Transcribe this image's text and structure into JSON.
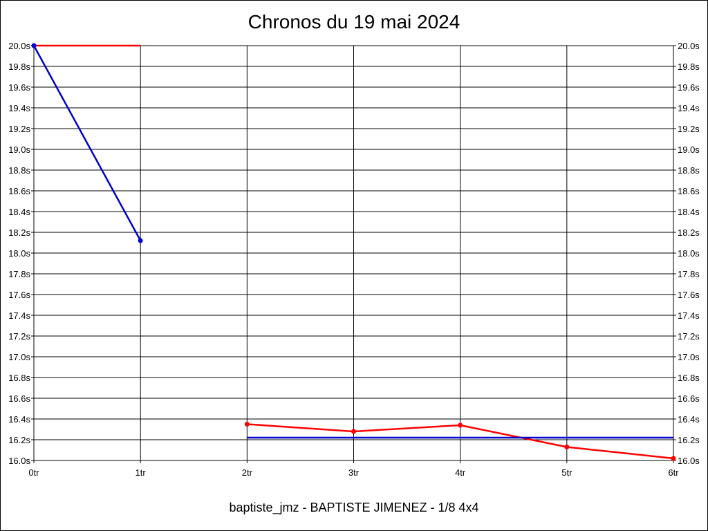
{
  "chart_data": {
    "type": "line",
    "title": "Chronos du 19 mai 2024",
    "footer": "baptiste_jmz - BAPTISTE JIMENEZ - 1/8 4x4",
    "x_ticks": [
      "0tr",
      "1tr",
      "2tr",
      "3tr",
      "4tr",
      "5tr",
      "6tr"
    ],
    "x_range": [
      0,
      6
    ],
    "y_ticks": [
      "20.0s",
      "19.8s",
      "19.6s",
      "19.4s",
      "19.2s",
      "19.0s",
      "18.8s",
      "18.6s",
      "18.4s",
      "18.2s",
      "18.0s",
      "17.8s",
      "17.6s",
      "17.4s",
      "17.2s",
      "17.0s",
      "16.8s",
      "16.6s",
      "16.4s",
      "16.2s",
      "16.0s"
    ],
    "y_range": [
      16.0,
      20.0
    ],
    "grid": true,
    "series": [
      {
        "color": "#ff0000",
        "segments": [
          {
            "x": [
              0,
              1
            ],
            "y": [
              20.0,
              20.0
            ],
            "markers": [
              true,
              false
            ]
          },
          {
            "x": [
              2,
              3,
              4,
              5,
              6
            ],
            "y": [
              16.35,
              16.28,
              16.34,
              16.13,
              16.02
            ],
            "markers": [
              true,
              true,
              true,
              true,
              true
            ]
          }
        ]
      },
      {
        "color": "#0000cc",
        "segments": [
          {
            "x": [
              0,
              1
            ],
            "y": [
              20.0,
              18.12
            ],
            "markers": [
              true,
              true
            ]
          },
          {
            "x": [
              2,
              6
            ],
            "y": [
              16.22,
              16.22
            ],
            "markers": [
              false,
              false
            ]
          }
        ]
      }
    ]
  }
}
